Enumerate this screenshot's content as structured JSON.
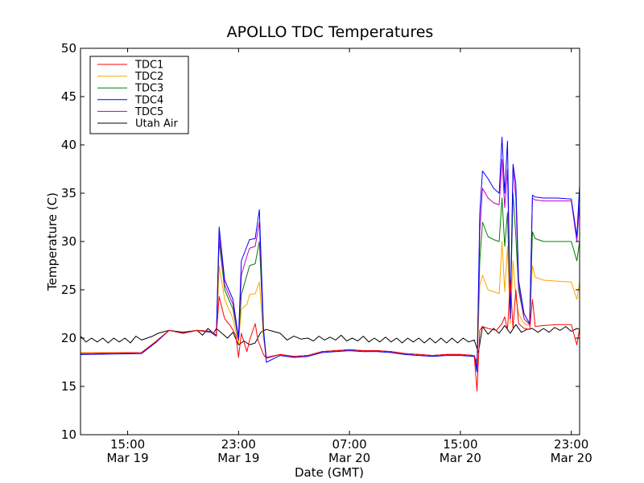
{
  "chart_data": {
    "type": "line",
    "title": "APOLLO TDC Temperatures",
    "xlabel": "Date (GMT)",
    "ylabel": "Temperature (C)",
    "ylim": [
      10,
      50
    ],
    "xlim_hours": [
      11.6,
      47.6
    ],
    "x_unit": "hours since Mar 19 00:00 GMT",
    "yticks": [
      "10",
      "15",
      "20",
      "25",
      "30",
      "35",
      "40",
      "45",
      "50"
    ],
    "xticks": [
      {
        "x": 15,
        "time": "15:00",
        "date": "Mar 19"
      },
      {
        "x": 23,
        "time": "23:00",
        "date": "Mar 19"
      },
      {
        "x": 31,
        "time": "07:00",
        "date": "Mar 20"
      },
      {
        "x": 39,
        "time": "15:00",
        "date": "Mar 20"
      },
      {
        "x": 47,
        "time": "23:00",
        "date": "Mar 20"
      }
    ],
    "legend_position": "top-left",
    "series": [
      {
        "name": "TDC1",
        "color": "#ff0000",
        "x": [
          11.6,
          16.0,
          17.0,
          18.0,
          19.0,
          20.0,
          21.0,
          21.4,
          21.6,
          22.0,
          22.4,
          22.8,
          23.0,
          23.2,
          23.6,
          23.8,
          24.2,
          24.4,
          24.8,
          25.0,
          26.0,
          27.0,
          28.0,
          29.0,
          30.0,
          31.0,
          32.0,
          33.0,
          34.0,
          35.0,
          36.0,
          37.0,
          38.0,
          39.0,
          40.0,
          40.2,
          40.4,
          40.6,
          41.0,
          41.6,
          42.0,
          42.2,
          42.4,
          42.6,
          42.8,
          43.0,
          43.2,
          43.6,
          44.0,
          44.2,
          44.4,
          45.0,
          46.0,
          47.0,
          47.4,
          47.6
        ],
        "y": [
          18.4,
          18.5,
          19.6,
          20.8,
          20.5,
          20.8,
          20.7,
          20.3,
          24.3,
          22.0,
          21.3,
          20.3,
          18.0,
          20.5,
          18.6,
          19.8,
          21.5,
          19.8,
          18.3,
          17.9,
          18.3,
          18.1,
          18.2,
          18.6,
          18.7,
          18.8,
          18.7,
          18.7,
          18.6,
          18.4,
          18.3,
          18.2,
          18.3,
          18.3,
          18.2,
          14.5,
          20.8,
          21.2,
          21.0,
          20.8,
          21.5,
          22.2,
          20.8,
          26.0,
          21.0,
          25.0,
          21.5,
          21.0,
          20.9,
          24.0,
          21.2,
          21.3,
          21.4,
          21.4,
          19.3,
          21.0
        ]
      },
      {
        "name": "TDC2",
        "color": "#ffa500",
        "x": [
          11.6,
          16.0,
          17.0,
          18.0,
          19.0,
          20.0,
          21.0,
          21.4,
          21.6,
          22.0,
          22.6,
          23.0,
          23.2,
          23.6,
          23.8,
          24.2,
          24.5,
          24.8,
          25.0,
          26.0,
          27.0,
          28.0,
          29.0,
          30.0,
          31.0,
          32.0,
          33.0,
          34.0,
          35.0,
          36.0,
          37.0,
          38.0,
          39.0,
          40.0,
          40.2,
          40.4,
          40.6,
          41.0,
          41.4,
          41.8,
          42.0,
          42.2,
          42.4,
          42.6,
          42.8,
          43.0,
          43.2,
          43.6,
          44.0,
          44.2,
          44.4,
          45.0,
          46.0,
          47.0,
          47.4,
          47.6
        ],
        "y": [
          18.5,
          18.5,
          19.6,
          20.8,
          20.5,
          20.8,
          20.7,
          20.3,
          27.5,
          24.0,
          22.0,
          19.5,
          23.0,
          23.5,
          24.5,
          24.6,
          25.8,
          20.0,
          18.0,
          18.3,
          18.1,
          18.2,
          18.6,
          18.7,
          18.8,
          18.7,
          18.7,
          18.6,
          18.4,
          18.3,
          18.2,
          18.3,
          18.3,
          18.2,
          17.0,
          25.5,
          26.5,
          25.0,
          24.8,
          24.6,
          30.0,
          24.8,
          29.5,
          21.5,
          28.0,
          24.2,
          22.5,
          21.5,
          21.3,
          27.5,
          26.3,
          26.0,
          25.9,
          25.8,
          24.0,
          25.8
        ]
      },
      {
        "name": "TDC3",
        "color": "#008000",
        "x": [
          11.6,
          16.0,
          17.0,
          18.0,
          19.0,
          20.0,
          21.0,
          21.4,
          21.6,
          22.0,
          22.6,
          23.0,
          23.2,
          23.6,
          23.8,
          24.2,
          24.5,
          24.8,
          25.0,
          26.0,
          27.0,
          28.0,
          29.0,
          30.0,
          31.0,
          32.0,
          33.0,
          34.0,
          35.0,
          36.0,
          37.0,
          38.0,
          39.0,
          40.0,
          40.2,
          40.4,
          40.6,
          41.0,
          41.4,
          41.8,
          42.0,
          42.2,
          42.4,
          42.6,
          42.8,
          43.0,
          43.2,
          43.6,
          44.0,
          44.2,
          44.4,
          45.0,
          46.0,
          47.0,
          47.4,
          47.6
        ],
        "y": [
          18.4,
          18.5,
          19.6,
          20.8,
          20.5,
          20.8,
          20.7,
          20.3,
          30.0,
          25.0,
          23.0,
          19.8,
          24.5,
          26.5,
          27.5,
          27.7,
          30.0,
          20.5,
          18.0,
          18.3,
          18.1,
          18.2,
          18.6,
          18.7,
          18.8,
          18.7,
          18.7,
          18.6,
          18.4,
          18.3,
          18.2,
          18.3,
          18.3,
          18.2,
          17.5,
          28.0,
          32.0,
          30.5,
          30.2,
          30.0,
          34.5,
          29.5,
          33.0,
          22.5,
          35.0,
          30.5,
          25.0,
          22.0,
          21.4,
          31.0,
          30.3,
          30.0,
          30.0,
          30.0,
          28.0,
          30.0
        ]
      },
      {
        "name": "TDC4",
        "color": "#0000ff",
        "x": [
          11.6,
          16.0,
          17.0,
          18.0,
          19.0,
          20.0,
          21.0,
          21.4,
          21.6,
          22.0,
          22.6,
          23.0,
          23.2,
          23.6,
          23.8,
          24.2,
          24.5,
          24.8,
          25.0,
          26.0,
          27.0,
          28.0,
          29.0,
          30.0,
          31.0,
          32.0,
          33.0,
          34.0,
          35.0,
          36.0,
          37.0,
          38.0,
          39.0,
          40.0,
          40.2,
          40.4,
          40.6,
          41.0,
          41.4,
          41.8,
          42.0,
          42.2,
          42.4,
          42.6,
          42.8,
          43.0,
          43.2,
          43.6,
          44.0,
          44.2,
          44.4,
          45.0,
          46.0,
          47.0,
          47.4,
          47.6
        ],
        "y": [
          18.3,
          18.4,
          19.5,
          20.8,
          20.5,
          20.8,
          20.6,
          20.2,
          31.5,
          26.0,
          24.0,
          20.0,
          28.0,
          29.5,
          30.2,
          30.3,
          33.3,
          21.0,
          17.5,
          18.2,
          18.0,
          18.1,
          18.5,
          18.6,
          18.7,
          18.6,
          18.6,
          18.5,
          18.3,
          18.2,
          18.1,
          18.2,
          18.2,
          18.1,
          16.5,
          33.0,
          37.3,
          36.5,
          35.5,
          35.0,
          40.8,
          35.0,
          40.4,
          22.0,
          38.0,
          36.0,
          26.0,
          22.5,
          21.5,
          34.8,
          34.6,
          34.5,
          34.5,
          34.4,
          30.5,
          35.8
        ]
      },
      {
        "name": "TDC5",
        "color": "#bf00bf",
        "x": [
          11.6,
          16.0,
          17.0,
          18.0,
          19.0,
          20.0,
          21.0,
          21.4,
          21.6,
          22.0,
          22.6,
          23.0,
          23.2,
          23.6,
          23.8,
          24.2,
          24.5,
          24.8,
          25.0,
          26.0,
          27.0,
          28.0,
          29.0,
          30.0,
          31.0,
          32.0,
          33.0,
          34.0,
          35.0,
          36.0,
          37.0,
          38.0,
          39.0,
          40.0,
          40.2,
          40.4,
          40.6,
          41.0,
          41.4,
          41.8,
          42.0,
          42.2,
          42.4,
          42.6,
          42.8,
          43.0,
          43.2,
          43.6,
          44.0,
          44.2,
          44.4,
          45.0,
          46.0,
          47.0,
          47.4,
          47.6
        ],
        "y": [
          18.4,
          18.5,
          19.6,
          20.8,
          20.5,
          20.8,
          20.7,
          20.3,
          30.8,
          25.5,
          23.5,
          19.9,
          26.5,
          28.5,
          29.3,
          29.5,
          32.0,
          20.8,
          18.0,
          18.3,
          18.1,
          18.2,
          18.6,
          18.7,
          18.8,
          18.7,
          18.7,
          18.6,
          18.4,
          18.3,
          18.2,
          18.3,
          18.3,
          18.2,
          17.0,
          31.0,
          35.5,
          34.5,
          34.0,
          33.8,
          38.5,
          33.5,
          37.5,
          22.0,
          37.5,
          34.5,
          25.5,
          22.0,
          21.4,
          34.5,
          34.3,
          34.2,
          34.2,
          34.2,
          30.0,
          34.0
        ]
      },
      {
        "name": "Utah Air",
        "color": "#000000",
        "x": [
          11.6,
          12.0,
          12.4,
          12.8,
          13.2,
          13.6,
          14.0,
          14.4,
          14.8,
          15.2,
          15.6,
          16.0,
          16.4,
          16.8,
          17.2,
          18.0,
          19.0,
          20.0,
          20.4,
          20.8,
          21.2,
          21.4,
          21.8,
          22.2,
          22.6,
          23.0,
          23.4,
          23.8,
          24.2,
          24.6,
          25.0,
          25.5,
          26.0,
          26.5,
          27.0,
          27.5,
          28.0,
          28.4,
          28.8,
          29.2,
          29.6,
          30.0,
          30.4,
          30.8,
          31.2,
          31.6,
          32.0,
          32.4,
          32.8,
          33.2,
          33.6,
          34.0,
          34.4,
          34.8,
          35.2,
          35.6,
          36.0,
          36.4,
          36.8,
          37.2,
          37.6,
          38.0,
          38.4,
          38.8,
          39.2,
          39.6,
          40.0,
          40.3,
          40.6,
          41.0,
          41.4,
          41.8,
          42.2,
          42.6,
          43.0,
          43.4,
          43.8,
          44.2,
          44.6,
          45.0,
          45.4,
          45.8,
          46.2,
          46.6,
          47.0,
          47.4,
          47.6
        ],
        "y": [
          20.2,
          19.6,
          20.0,
          19.6,
          20.0,
          19.5,
          20.0,
          19.6,
          20.0,
          19.5,
          20.2,
          19.8,
          20.0,
          20.2,
          20.5,
          20.8,
          20.6,
          20.8,
          20.3,
          21.0,
          20.5,
          21.0,
          20.5,
          20.0,
          20.6,
          19.3,
          19.7,
          19.3,
          19.5,
          20.6,
          20.9,
          20.7,
          20.5,
          19.8,
          20.2,
          19.9,
          20.0,
          19.7,
          20.2,
          19.8,
          20.1,
          19.8,
          20.3,
          19.7,
          20.0,
          19.7,
          20.2,
          19.6,
          20.0,
          19.6,
          20.1,
          19.6,
          20.0,
          19.5,
          20.0,
          19.6,
          20.0,
          19.5,
          20.0,
          19.5,
          20.0,
          19.5,
          20.0,
          19.5,
          20.0,
          19.6,
          19.8,
          18.5,
          21.2,
          20.4,
          21.0,
          20.5,
          21.3,
          20.5,
          21.4,
          20.6,
          20.9,
          21.0,
          20.6,
          21.0,
          20.6,
          21.1,
          20.8,
          21.2,
          20.7,
          21.0,
          20.9
        ]
      }
    ]
  }
}
